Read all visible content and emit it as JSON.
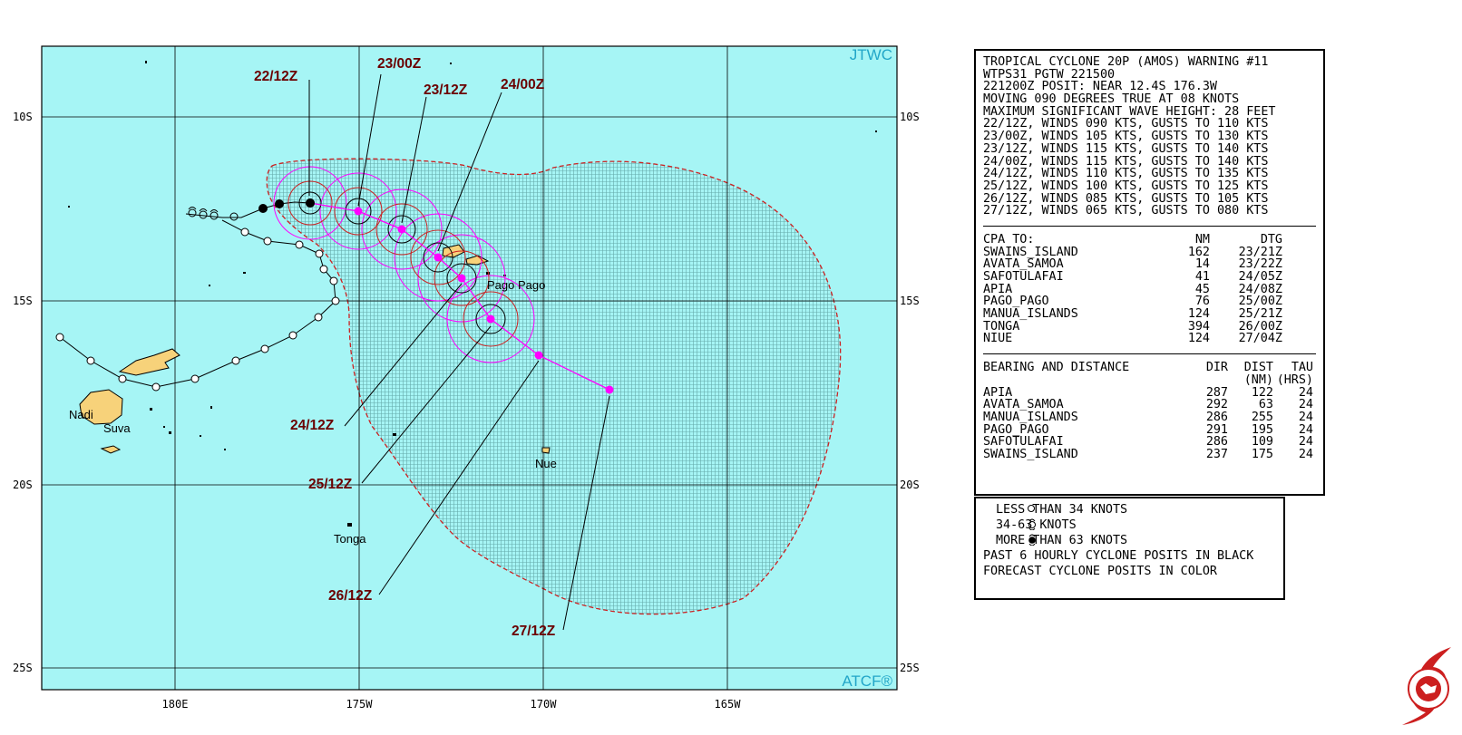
{
  "map": {
    "lat_lines": [
      "10S",
      "15S",
      "20S",
      "25S"
    ],
    "lon_lines": [
      "180E",
      "175W",
      "170W",
      "165W"
    ],
    "corner_top": "JTWC",
    "corner_bottom": "ATCF®",
    "places": [
      {
        "name": "Pago Pago"
      },
      {
        "name": "Nadi"
      },
      {
        "name": "Suva"
      },
      {
        "name": "Nue"
      },
      {
        "name": "Tonga"
      }
    ],
    "forecast_labels": [
      "22/12Z",
      "23/00Z",
      "23/12Z",
      "24/00Z",
      "24/12Z",
      "25/12Z",
      "26/12Z",
      "27/12Z"
    ],
    "colors": {
      "ocean": "#a6f5f5",
      "land": "#f7d27a",
      "forecast": "#ff00ff",
      "danger": "#cc2222",
      "label": "#6b0000"
    }
  },
  "warning": {
    "lines": [
      "TROPICAL CYCLONE 20P (AMOS) WARNING #11",
      "WTPS31 PGTW 221500",
      "221200Z POSIT: NEAR 12.4S 176.3W",
      "MOVING 090 DEGREES TRUE AT 08 KNOTS",
      "MAXIMUM SIGNIFICANT WAVE HEIGHT: 28 FEET",
      "22/12Z, WINDS 090 KTS, GUSTS TO 110 KTS",
      "23/00Z, WINDS 105 KTS, GUSTS TO 130 KTS",
      "23/12Z, WINDS 115 KTS, GUSTS TO 140 KTS",
      "24/00Z, WINDS 115 KTS, GUSTS TO 140 KTS",
      "24/12Z, WINDS 110 KTS, GUSTS TO 135 KTS",
      "25/12Z, WINDS 100 KTS, GUSTS TO 125 KTS",
      "26/12Z, WINDS 085 KTS, GUSTS TO 105 KTS",
      "27/12Z, WINDS 065 KTS, GUSTS TO 080 KTS"
    ],
    "cpa_header": {
      "name": "CPA TO:",
      "nm": "NM",
      "dtg": "DTG"
    },
    "cpa": [
      {
        "name": "SWAINS_ISLAND",
        "nm": "162",
        "dtg": "23/21Z"
      },
      {
        "name": "AVATA_SAMOA",
        "nm": "14",
        "dtg": "23/22Z"
      },
      {
        "name": "SAFOTULAFAI",
        "nm": "41",
        "dtg": "24/05Z"
      },
      {
        "name": "APIA",
        "nm": "45",
        "dtg": "24/08Z"
      },
      {
        "name": "PAGO_PAGO",
        "nm": "76",
        "dtg": "25/00Z"
      },
      {
        "name": "MANUA_ISLANDS",
        "nm": "124",
        "dtg": "25/21Z"
      },
      {
        "name": "TONGA",
        "nm": "394",
        "dtg": "26/00Z"
      },
      {
        "name": "NIUE",
        "nm": "124",
        "dtg": "27/04Z"
      }
    ],
    "bd_header": {
      "name": "BEARING AND DISTANCE",
      "dir": "DIR",
      "dist": "DIST",
      "tau": "TAU",
      "dist_unit": "(NM)",
      "tau_unit": "(HRS)"
    },
    "bd": [
      {
        "name": "APIA",
        "dir": "287",
        "dist": "122",
        "tau": "24"
      },
      {
        "name": "AVATA_SAMOA",
        "dir": "292",
        "dist": "63",
        "tau": "24"
      },
      {
        "name": "MANUA_ISLANDS",
        "dir": "286",
        "dist": "255",
        "tau": "24"
      },
      {
        "name": "PAGO_PAGO",
        "dir": "291",
        "dist": "195",
        "tau": "24"
      },
      {
        "name": "SAFOTULAFAI",
        "dir": "286",
        "dist": "109",
        "tau": "24"
      },
      {
        "name": "SWAINS_ISLAND",
        "dir": "237",
        "dist": "175",
        "tau": "24"
      }
    ]
  },
  "legend": {
    "items": [
      {
        "icon": "open-circle-icon",
        "label": "LESS THAN 34 KNOTS"
      },
      {
        "icon": "cyclone-open-icon",
        "label": "34-63 KNOTS"
      },
      {
        "icon": "cyclone-filled-icon",
        "label": "MORE THAN 63 KNOTS"
      }
    ],
    "notes": [
      "PAST 6 HOURLY CYCLONE POSITS IN BLACK",
      "FORECAST CYCLONE POSITS IN COLOR"
    ]
  }
}
